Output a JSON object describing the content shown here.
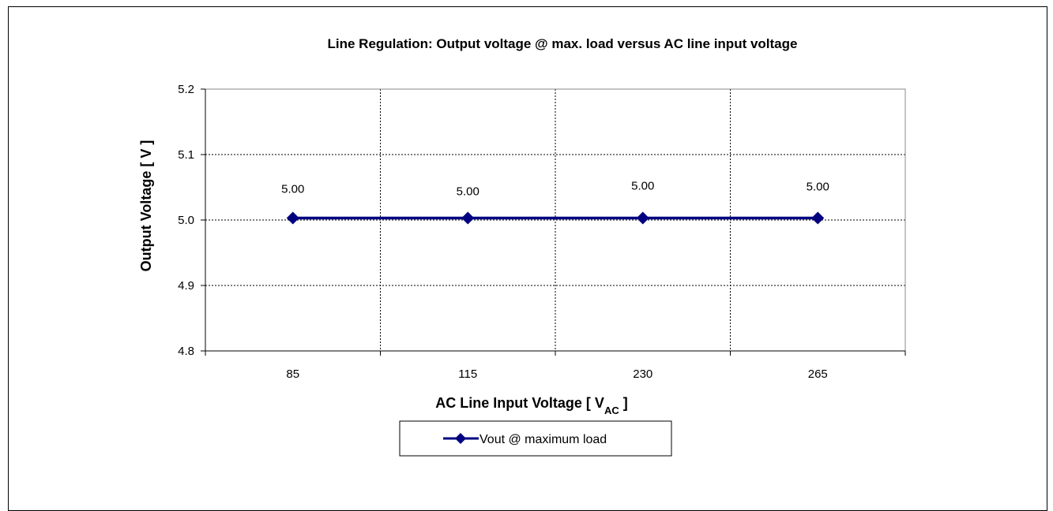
{
  "chart_data": {
    "type": "line",
    "title": "Line Regulation: Output voltage @ max. load versus AC line input voltage",
    "xlabel": "AC Line Input Voltage [ V",
    "xlabel_sub": "AC",
    "xlabel_suffix": " ]",
    "ylabel": "Output Voltage [ V ]",
    "categories": [
      "85",
      "115",
      "230",
      "265"
    ],
    "ylim": [
      4.8,
      5.2
    ],
    "yticks": [
      "5.2",
      "5.1",
      "5.0",
      "4.9",
      "4.8"
    ],
    "grid": true,
    "legend_position": "bottom",
    "series": [
      {
        "name": "Vout @ maximum load",
        "values": [
          5.003,
          5.003,
          5.003,
          5.003
        ],
        "data_labels": [
          "5.00",
          "5.00",
          "5.00",
          "5.00"
        ],
        "color": "#000080"
      }
    ]
  }
}
